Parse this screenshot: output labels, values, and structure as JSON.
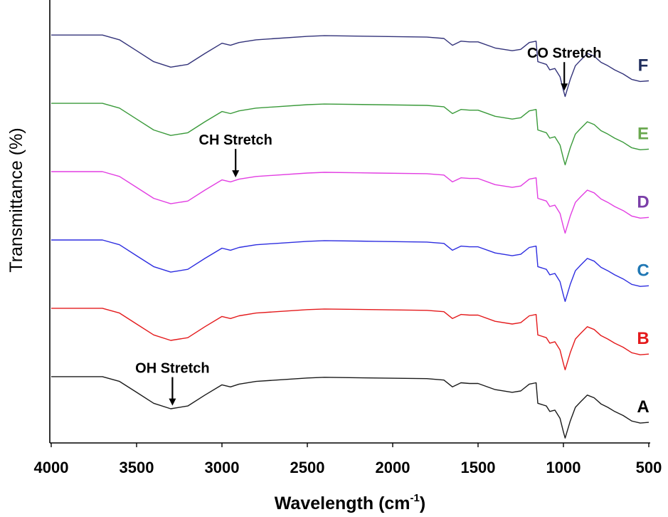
{
  "chart_data": {
    "type": "line",
    "xlabel": "Wavelength (cm",
    "xlabel_sup": "-1",
    "xlabel_close": ")",
    "ylabel": "Transmittance (%)",
    "xlim": [
      4000,
      500
    ],
    "x_reversed": true,
    "grid": false,
    "x_ticks": [
      "4000",
      "3500",
      "3000",
      "2500",
      "2000",
      "1500",
      "1000",
      "500"
    ],
    "x_tick_values": [
      4000,
      3500,
      3000,
      2500,
      2000,
      1500,
      1000,
      500
    ],
    "ylim": [
      0,
      6.4
    ],
    "y_units": "arbitrary (stacked, offset spectra, no tick labels)",
    "legend": "labels at right end of each curve",
    "series": [
      {
        "name": "A",
        "color": "#1a1a1a",
        "label_color": "#000000",
        "offset": 0,
        "x": [
          4000,
          3700,
          3600,
          3500,
          3400,
          3300,
          3200,
          3100,
          3000,
          2950,
          2900,
          2800,
          2500,
          2400,
          2100,
          1800,
          1700,
          1650,
          1600,
          1550,
          1500,
          1400,
          1300,
          1250,
          1200,
          1160,
          1150,
          1100,
          1080,
          1050,
          1020,
          1000,
          990,
          960,
          930,
          900,
          860,
          820,
          780,
          740,
          700,
          650,
          600,
          550,
          500
        ],
        "y": [
          0.95,
          0.95,
          0.88,
          0.72,
          0.56,
          0.48,
          0.52,
          0.68,
          0.83,
          0.8,
          0.84,
          0.88,
          0.93,
          0.94,
          0.93,
          0.92,
          0.9,
          0.8,
          0.86,
          0.85,
          0.85,
          0.76,
          0.72,
          0.74,
          0.84,
          0.86,
          0.56,
          0.52,
          0.44,
          0.46,
          0.34,
          0.14,
          0.05,
          0.3,
          0.5,
          0.58,
          0.68,
          0.64,
          0.55,
          0.5,
          0.44,
          0.38,
          0.3,
          0.27,
          0.28
        ]
      },
      {
        "name": "B",
        "color": "#e41a1c",
        "label_color": "#e41a1c",
        "offset": 1,
        "x": [
          4000,
          3700,
          3600,
          3500,
          3400,
          3300,
          3200,
          3100,
          3000,
          2950,
          2900,
          2800,
          2500,
          2400,
          2100,
          1800,
          1700,
          1650,
          1600,
          1550,
          1500,
          1400,
          1300,
          1250,
          1200,
          1160,
          1150,
          1100,
          1080,
          1050,
          1020,
          1000,
          990,
          960,
          930,
          900,
          860,
          820,
          780,
          740,
          700,
          650,
          600,
          550,
          500
        ],
        "y": [
          0.95,
          0.95,
          0.88,
          0.72,
          0.56,
          0.48,
          0.52,
          0.68,
          0.83,
          0.8,
          0.84,
          0.88,
          0.93,
          0.94,
          0.93,
          0.92,
          0.9,
          0.8,
          0.86,
          0.85,
          0.85,
          0.76,
          0.72,
          0.74,
          0.84,
          0.86,
          0.56,
          0.52,
          0.44,
          0.46,
          0.34,
          0.14,
          0.05,
          0.3,
          0.5,
          0.58,
          0.68,
          0.64,
          0.55,
          0.5,
          0.44,
          0.38,
          0.3,
          0.27,
          0.28
        ]
      },
      {
        "name": "C",
        "color": "#2d2de0",
        "label_color": "#1f77b4",
        "offset": 2,
        "x": [
          4000,
          3700,
          3600,
          3500,
          3400,
          3300,
          3200,
          3100,
          3000,
          2950,
          2900,
          2800,
          2500,
          2400,
          2100,
          1800,
          1700,
          1650,
          1600,
          1550,
          1500,
          1400,
          1300,
          1250,
          1200,
          1160,
          1150,
          1100,
          1080,
          1050,
          1020,
          1000,
          990,
          960,
          930,
          900,
          860,
          820,
          780,
          740,
          700,
          650,
          600,
          550,
          500
        ],
        "y": [
          0.95,
          0.95,
          0.88,
          0.72,
          0.56,
          0.48,
          0.52,
          0.68,
          0.83,
          0.8,
          0.84,
          0.88,
          0.93,
          0.94,
          0.93,
          0.92,
          0.9,
          0.8,
          0.86,
          0.85,
          0.85,
          0.76,
          0.72,
          0.74,
          0.84,
          0.86,
          0.56,
          0.52,
          0.44,
          0.46,
          0.34,
          0.14,
          0.05,
          0.3,
          0.5,
          0.58,
          0.68,
          0.64,
          0.55,
          0.5,
          0.44,
          0.38,
          0.3,
          0.27,
          0.28
        ]
      },
      {
        "name": "D",
        "color": "#e23ee2",
        "label_color": "#7b3fa8",
        "offset": 3,
        "x": [
          4000,
          3700,
          3600,
          3500,
          3400,
          3300,
          3200,
          3100,
          3000,
          2950,
          2900,
          2800,
          2500,
          2400,
          2100,
          1800,
          1700,
          1650,
          1600,
          1550,
          1500,
          1400,
          1300,
          1250,
          1200,
          1160,
          1150,
          1100,
          1080,
          1050,
          1020,
          1000,
          990,
          960,
          930,
          900,
          860,
          820,
          780,
          740,
          700,
          650,
          600,
          550,
          500
        ],
        "y": [
          0.95,
          0.95,
          0.88,
          0.72,
          0.56,
          0.48,
          0.52,
          0.68,
          0.83,
          0.8,
          0.84,
          0.88,
          0.93,
          0.94,
          0.93,
          0.92,
          0.9,
          0.8,
          0.86,
          0.85,
          0.85,
          0.76,
          0.72,
          0.74,
          0.84,
          0.86,
          0.56,
          0.52,
          0.44,
          0.46,
          0.34,
          0.14,
          0.05,
          0.3,
          0.5,
          0.58,
          0.68,
          0.64,
          0.55,
          0.5,
          0.44,
          0.38,
          0.3,
          0.27,
          0.28
        ]
      },
      {
        "name": "E",
        "color": "#3a9a3a",
        "label_color": "#6aa84f",
        "offset": 4,
        "x": [
          4000,
          3700,
          3600,
          3500,
          3400,
          3300,
          3200,
          3100,
          3000,
          2950,
          2900,
          2800,
          2500,
          2400,
          2100,
          1800,
          1700,
          1650,
          1600,
          1550,
          1500,
          1400,
          1300,
          1250,
          1200,
          1160,
          1150,
          1100,
          1080,
          1050,
          1020,
          1000,
          990,
          960,
          930,
          900,
          860,
          820,
          780,
          740,
          700,
          650,
          600,
          550,
          500
        ],
        "y": [
          0.95,
          0.95,
          0.88,
          0.72,
          0.56,
          0.48,
          0.52,
          0.68,
          0.83,
          0.8,
          0.84,
          0.88,
          0.93,
          0.94,
          0.93,
          0.92,
          0.9,
          0.8,
          0.86,
          0.85,
          0.85,
          0.76,
          0.72,
          0.74,
          0.84,
          0.86,
          0.56,
          0.52,
          0.44,
          0.46,
          0.34,
          0.14,
          0.05,
          0.3,
          0.5,
          0.58,
          0.68,
          0.64,
          0.55,
          0.5,
          0.44,
          0.38,
          0.3,
          0.27,
          0.28
        ]
      },
      {
        "name": "F",
        "color": "#33337a",
        "label_color": "#1f2d5c",
        "offset": 5,
        "x": [
          4000,
          3700,
          3600,
          3500,
          3400,
          3300,
          3200,
          3100,
          3000,
          2950,
          2900,
          2800,
          2500,
          2400,
          2100,
          1800,
          1700,
          1650,
          1600,
          1550,
          1500,
          1400,
          1300,
          1250,
          1200,
          1160,
          1150,
          1100,
          1080,
          1050,
          1020,
          1000,
          990,
          960,
          930,
          900,
          860,
          820,
          780,
          740,
          700,
          650,
          600,
          550,
          500
        ],
        "y": [
          0.95,
          0.95,
          0.88,
          0.72,
          0.56,
          0.48,
          0.52,
          0.68,
          0.83,
          0.8,
          0.84,
          0.88,
          0.93,
          0.94,
          0.93,
          0.92,
          0.9,
          0.8,
          0.86,
          0.85,
          0.85,
          0.76,
          0.72,
          0.74,
          0.84,
          0.86,
          0.56,
          0.52,
          0.44,
          0.46,
          0.34,
          0.14,
          0.05,
          0.3,
          0.5,
          0.58,
          0.68,
          0.64,
          0.55,
          0.5,
          0.44,
          0.38,
          0.3,
          0.27,
          0.28
        ]
      }
    ],
    "annotations": [
      {
        "text": "OH Stretch",
        "x": 3290,
        "series": "A"
      },
      {
        "text": "CH Stretch",
        "x": 2920,
        "series": "D"
      },
      {
        "text": "CO Stretch",
        "x": 995,
        "series": "F"
      }
    ]
  }
}
